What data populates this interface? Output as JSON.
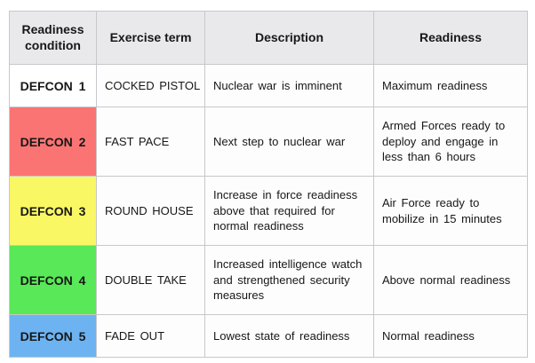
{
  "table": {
    "headers": [
      "Readiness condition",
      "Exercise term",
      "Description",
      "Readiness"
    ],
    "rows": [
      {
        "condition": "DEFCON 1",
        "term": "COCKED PISTOL",
        "description": "Nuclear war is imminent",
        "readiness": "Maximum readiness",
        "color": "#ffffff"
      },
      {
        "condition": "DEFCON 2",
        "term": "FAST PACE",
        "description": "Next step to nuclear war",
        "readiness": "Armed Forces ready to deploy and engage in less than 6 hours",
        "color": "#fb7474"
      },
      {
        "condition": "DEFCON 3",
        "term": "ROUND HOUSE",
        "description": "Increase in force readiness above that required for normal readiness",
        "readiness": "Air Force ready to mobilize in 15 minutes",
        "color": "#f9f763"
      },
      {
        "condition": "DEFCON 4",
        "term": "DOUBLE TAKE",
        "description": "Increased intelligence watch and strengthened security measures",
        "readiness": "Above normal readiness",
        "color": "#58e858"
      },
      {
        "condition": "DEFCON 5",
        "term": "FADE OUT",
        "description": "Lowest state of readiness",
        "readiness": "Normal readiness",
        "color": "#6db3f2"
      }
    ],
    "colors": {
      "header_bg": "#e9e9ec",
      "border": "#c8c8cc"
    }
  }
}
